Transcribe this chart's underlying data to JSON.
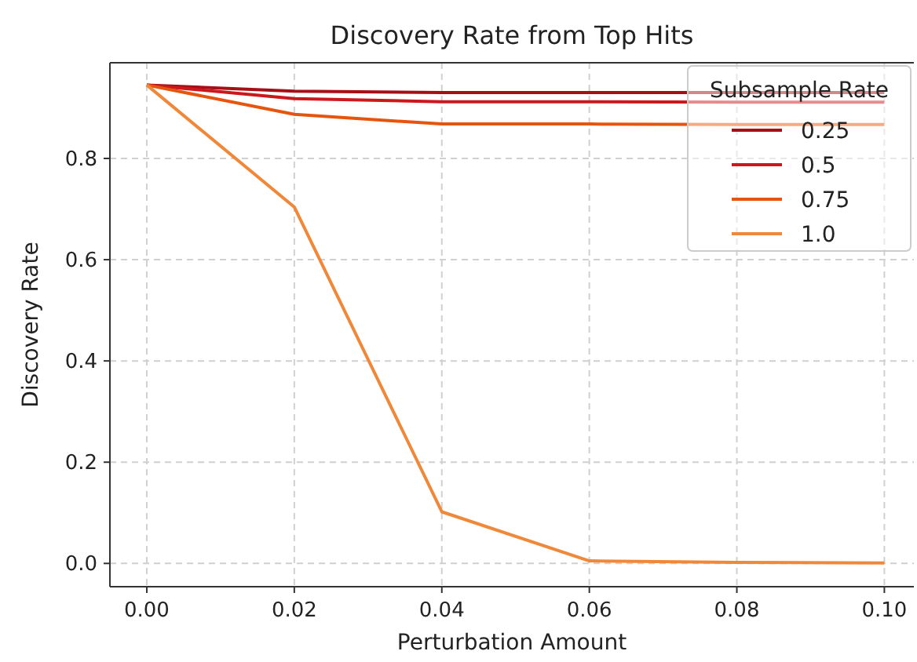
{
  "chart_data": {
    "type": "line",
    "title": "Discovery Rate from Top Hits",
    "xlabel": "Perturbation Amount",
    "ylabel": "Discovery Rate",
    "legend_title": "Subsample Rate",
    "x": [
      0,
      0.02,
      0.04,
      0.06,
      0.08,
      0.1
    ],
    "series": [
      {
        "name": "0.25",
        "color": "#a50f15",
        "values": [
          0.945,
          0.933,
          0.93,
          0.93,
          0.93,
          0.93
        ]
      },
      {
        "name": "0.5",
        "color": "#cb181d",
        "values": [
          0.945,
          0.918,
          0.912,
          0.912,
          0.911,
          0.911
        ]
      },
      {
        "name": "0.75",
        "color": "#e6550d",
        "values": [
          0.945,
          0.887,
          0.868,
          0.868,
          0.867,
          0.867
        ]
      },
      {
        "name": "1.0",
        "color": "#f0883a",
        "values": [
          0.945,
          0.704,
          0.102,
          0.005,
          0.002,
          0.001
        ]
      }
    ],
    "xlim": [
      -0.005,
      0.104
    ],
    "ylim": [
      -0.046,
      0.989
    ],
    "xticks": [
      {
        "value": 0,
        "label": "0.00"
      },
      {
        "value": 0.02,
        "label": "0.02"
      },
      {
        "value": 0.04,
        "label": "0.04"
      },
      {
        "value": 0.06,
        "label": "0.06"
      },
      {
        "value": 0.08,
        "label": "0.08"
      },
      {
        "value": 0.1,
        "label": "0.10"
      }
    ],
    "yticks": [
      {
        "value": 0,
        "label": "0.0"
      },
      {
        "value": 0.2,
        "label": "0.2"
      },
      {
        "value": 0.4,
        "label": "0.4"
      },
      {
        "value": 0.6,
        "label": "0.6"
      },
      {
        "value": 0.8,
        "label": "0.8"
      }
    ],
    "grid": true,
    "legend": "top right",
    "marker": "none",
    "line_style": "solid"
  }
}
